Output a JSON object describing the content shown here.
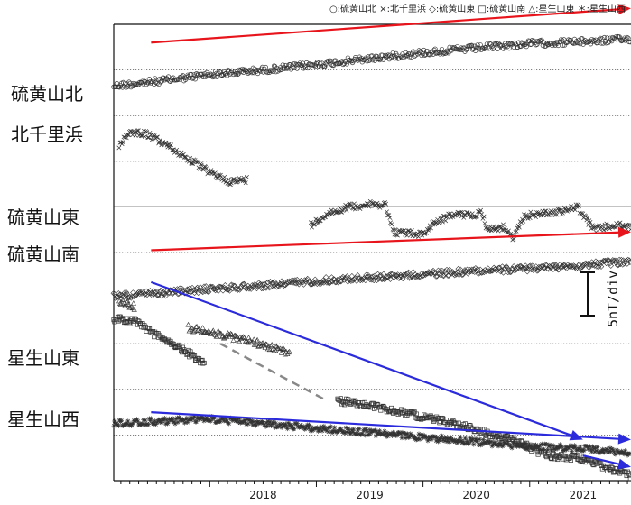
{
  "chart_data": {
    "type": "scatter",
    "title": "",
    "xlabel": "",
    "ylabel": "",
    "legend_text": "○:硫黄山北 ×:北千里浜 ◇:硫黄山東 □:硫黄山南 △:星生山東 ＊:星生山西",
    "legend_position": "top-right",
    "x_range": [
      2017.1,
      2021.95
    ],
    "x_tick_labels": [
      "2018",
      "2019",
      "2020",
      "2021"
    ],
    "x_tick_values": [
      2018,
      2019,
      2020,
      2021
    ],
    "y_range": [
      0,
      10
    ],
    "grid": true,
    "scale_bar": {
      "label": "5nT/div",
      "value": 5
    },
    "series": [
      {
        "name": "硫黄山北",
        "marker": "circle",
        "points": [
          [
            2017.1,
            1.35
          ],
          [
            2017.5,
            1.25
          ],
          [
            2018.0,
            1.1
          ],
          [
            2018.5,
            1.0
          ],
          [
            2019.0,
            0.88
          ],
          [
            2019.5,
            0.75
          ],
          [
            2020.0,
            0.62
          ],
          [
            2020.5,
            0.52
          ],
          [
            2021.0,
            0.42
          ],
          [
            2021.5,
            0.38
          ],
          [
            2021.95,
            0.32
          ]
        ]
      },
      {
        "name": "北千里浜",
        "marker": "x",
        "segments": [
          [
            [
              2017.15,
              2.65
            ],
            [
              2017.25,
              2.35
            ],
            [
              2017.4,
              2.4
            ],
            [
              2017.6,
              2.65
            ],
            [
              2017.8,
              2.95
            ],
            [
              2018.0,
              3.25
            ],
            [
              2018.2,
              3.45
            ],
            [
              2018.35,
              3.4
            ]
          ],
          [
            [
              2018.95,
              4.4
            ],
            [
              2019.1,
              4.15
            ],
            [
              2019.3,
              4.0
            ],
            [
              2019.5,
              3.95
            ],
            [
              2019.65,
              3.95
            ],
            [
              2019.72,
              4.55
            ],
            [
              2020.0,
              4.6
            ],
            [
              2020.1,
              4.35
            ],
            [
              2020.3,
              4.15
            ],
            [
              2020.45,
              4.2
            ],
            [
              2020.55,
              4.1
            ],
            [
              2020.6,
              4.5
            ],
            [
              2020.75,
              4.45
            ],
            [
              2020.85,
              4.7
            ],
            [
              2020.95,
              4.2
            ],
            [
              2021.1,
              4.15
            ],
            [
              2021.3,
              4.1
            ],
            [
              2021.45,
              4.0
            ],
            [
              2021.6,
              4.5
            ],
            [
              2021.8,
              4.4
            ],
            [
              2021.95,
              4.45
            ]
          ]
        ]
      },
      {
        "name": "硫黄山東",
        "marker": "diamond",
        "points": [
          [
            2017.1,
            5.95
          ],
          [
            2017.5,
            5.9
          ],
          [
            2018.0,
            5.8
          ],
          [
            2018.5,
            5.72
          ],
          [
            2019.0,
            5.62
          ],
          [
            2019.5,
            5.55
          ],
          [
            2020.0,
            5.48
          ],
          [
            2020.5,
            5.4
          ],
          [
            2021.0,
            5.35
          ],
          [
            2021.5,
            5.28
          ],
          [
            2021.95,
            5.2
          ]
        ]
      },
      {
        "name": "硫黄山南",
        "marker": "square",
        "segments": [
          [
            [
              2017.1,
              6.45
            ],
            [
              2017.3,
              6.5
            ],
            [
              2017.45,
              6.75
            ],
            [
              2017.6,
              6.95
            ],
            [
              2017.8,
              7.2
            ],
            [
              2017.95,
              7.45
            ]
          ],
          [
            [
              2019.2,
              8.25
            ],
            [
              2019.5,
              8.35
            ],
            [
              2019.8,
              8.5
            ],
            [
              2020.0,
              8.6
            ],
            [
              2020.3,
              8.75
            ],
            [
              2020.6,
              8.95
            ],
            [
              2020.9,
              9.15
            ],
            [
              2021.15,
              9.45
            ],
            [
              2021.45,
              9.5
            ],
            [
              2021.7,
              9.7
            ],
            [
              2021.95,
              9.9
            ]
          ]
        ],
        "gap_line": [
          [
            2018.1,
            7.0
          ],
          [
            2019.1,
            8.25
          ]
        ]
      },
      {
        "name": "星生山東",
        "marker": "triangle",
        "segments": [
          [
            [
              2017.15,
              6.05
            ],
            [
              2017.3,
              6.2
            ]
          ],
          [
            [
              2017.8,
              6.65
            ],
            [
              2018.0,
              6.75
            ],
            [
              2018.2,
              6.85
            ],
            [
              2018.4,
              6.95
            ],
            [
              2018.6,
              7.1
            ],
            [
              2018.75,
              7.2
            ]
          ]
        ]
      },
      {
        "name": "星生山西",
        "marker": "star",
        "points": [
          [
            2017.1,
            8.75
          ],
          [
            2017.5,
            8.7
          ],
          [
            2018.0,
            8.65
          ],
          [
            2018.5,
            8.75
          ],
          [
            2019.0,
            8.85
          ],
          [
            2019.5,
            8.95
          ],
          [
            2020.0,
            9.05
          ],
          [
            2020.5,
            9.15
          ],
          [
            2021.0,
            9.25
          ],
          [
            2021.5,
            9.3
          ],
          [
            2021.95,
            9.4
          ]
        ]
      }
    ],
    "trend_arrows": [
      {
        "color": "#e8141b",
        "from": [
          2017.45,
          0.4
        ],
        "to": [
          2021.95,
          -0.35
        ]
      },
      {
        "color": "#e8141b",
        "from": [
          2017.45,
          4.95
        ],
        "to": [
          2021.95,
          4.55
        ]
      },
      {
        "color": "#2b2bdc",
        "from": [
          2017.45,
          5.65
        ],
        "to": [
          2021.5,
          9.1
        ]
      },
      {
        "color": "#2b2bdc",
        "from": [
          2021.5,
          9.45
        ],
        "to": [
          2021.95,
          9.7
        ]
      },
      {
        "color": "#2b2bdc",
        "from": [
          2017.45,
          8.5
        ],
        "to": [
          2021.95,
          9.1
        ]
      }
    ]
  },
  "station_labels": [
    "硫黄山北",
    "北千里浜",
    "硫黄山東",
    "硫黄山南",
    "星生山東",
    "星生山西"
  ],
  "colors": {
    "red_arrow": "#e8141b",
    "blue_arrow": "#2b2bdc",
    "markers": "#333333",
    "gap_line": "#888888"
  }
}
